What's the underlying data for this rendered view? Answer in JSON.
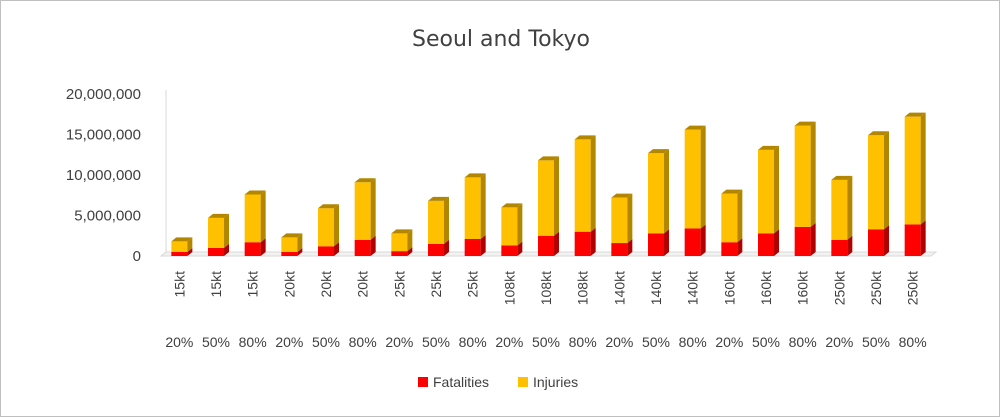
{
  "chart_data": {
    "type": "bar",
    "stacked": true,
    "style": "3d-column",
    "title": "Seoul and Tokyo",
    "xlabel": "",
    "ylabel": "",
    "ylim": [
      0,
      20000000
    ],
    "yticks": [
      "20,000,000",
      "15,000,000",
      "10,000,000",
      "5,000,000",
      "0"
    ],
    "grid": false,
    "legend_position": "bottom",
    "categories_level1": [
      "15kt",
      "15kt",
      "15kt",
      "20kt",
      "20kt",
      "20kt",
      "25kt",
      "25kt",
      "25kt",
      "108kt",
      "108kt",
      "108kt",
      "140kt",
      "140kt",
      "140kt",
      "160kt",
      "160kt",
      "160kt",
      "250kt",
      "250kt",
      "250kt"
    ],
    "categories_level2": [
      "20%",
      "50%",
      "80%",
      "20%",
      "50%",
      "80%",
      "20%",
      "50%",
      "80%",
      "20%",
      "50%",
      "80%",
      "20%",
      "50%",
      "80%",
      "20%",
      "50%",
      "80%",
      "20%",
      "50%",
      "80%"
    ],
    "series": [
      {
        "name": "Fatalities",
        "color": "#ff0000",
        "side_color": "#b00000",
        "values": [
          500000,
          1000000,
          1700000,
          500000,
          1200000,
          2000000,
          600000,
          1500000,
          2100000,
          1300000,
          2500000,
          3000000,
          1600000,
          2800000,
          3400000,
          1700000,
          2800000,
          3600000,
          2000000,
          3300000,
          3900000
        ]
      },
      {
        "name": "Injuries",
        "color": "#ffc000",
        "side_color": "#b38600",
        "values": [
          1300000,
          3700000,
          5900000,
          1800000,
          4700000,
          7100000,
          2200000,
          5300000,
          7600000,
          4700000,
          9300000,
          11400000,
          5600000,
          9900000,
          12200000,
          6000000,
          10300000,
          12500000,
          7400000,
          11600000,
          13300000
        ]
      }
    ]
  }
}
